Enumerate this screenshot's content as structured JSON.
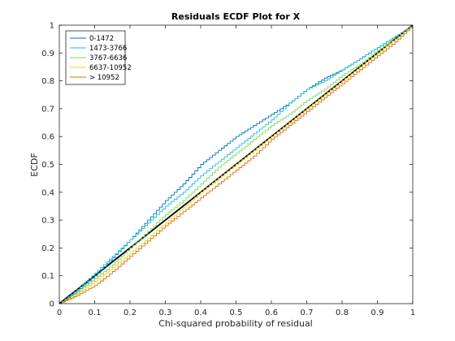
{
  "chart_data": {
    "type": "line",
    "title": "Residuals ECDF Plot for X",
    "xlabel": "Chi-squared probability of residual",
    "ylabel": "ECDF",
    "xlim": [
      0,
      1
    ],
    "ylim": [
      0,
      1
    ],
    "xticks": [
      0,
      0.1,
      0.2,
      0.3,
      0.4,
      0.5,
      0.6,
      0.7,
      0.8,
      0.9,
      1
    ],
    "yticks": [
      0,
      0.1,
      0.2,
      0.3,
      0.4,
      0.5,
      0.6,
      0.7,
      0.8,
      0.9,
      1
    ],
    "xtick_labels": [
      "0",
      "0.1",
      "0.2",
      "0.3",
      "0.4",
      "0.5",
      "0.6",
      "0.7",
      "0.8",
      "0.9",
      "1"
    ],
    "ytick_labels": [
      "0",
      "0.1",
      "0.2",
      "0.3",
      "0.4",
      "0.5",
      "0.6",
      "0.7",
      "0.8",
      "0.9",
      "1"
    ],
    "grid": false,
    "legend_position": "top-left",
    "reference_line": {
      "x": [
        0,
        1
      ],
      "y": [
        0,
        1
      ],
      "color": "#000000"
    },
    "series": [
      {
        "name": "0-1472",
        "color": "#0072BD",
        "x": [
          0,
          0.05,
          0.1,
          0.15,
          0.2,
          0.25,
          0.3,
          0.35,
          0.4,
          0.45,
          0.5,
          0.55,
          0.6,
          0.65,
          0.7,
          0.75,
          0.8,
          0.85,
          0.9,
          0.95,
          1
        ],
        "y": [
          0,
          0.045,
          0.1,
          0.165,
          0.23,
          0.3,
          0.37,
          0.43,
          0.5,
          0.55,
          0.6,
          0.64,
          0.68,
          0.72,
          0.77,
          0.81,
          0.84,
          0.88,
          0.92,
          0.96,
          1
        ]
      },
      {
        "name": "1473-3766",
        "color": "#1ABFD6",
        "x": [
          0,
          0.05,
          0.1,
          0.15,
          0.2,
          0.25,
          0.3,
          0.35,
          0.4,
          0.45,
          0.5,
          0.55,
          0.6,
          0.65,
          0.7,
          0.75,
          0.8,
          0.85,
          0.9,
          0.95,
          1
        ],
        "y": [
          0,
          0.05,
          0.11,
          0.17,
          0.23,
          0.29,
          0.35,
          0.4,
          0.46,
          0.51,
          0.56,
          0.61,
          0.66,
          0.72,
          0.77,
          0.8,
          0.84,
          0.88,
          0.92,
          0.96,
          1
        ]
      },
      {
        "name": "3767-6636",
        "color": "#7ED957",
        "x": [
          0,
          0.05,
          0.1,
          0.15,
          0.2,
          0.25,
          0.3,
          0.35,
          0.4,
          0.45,
          0.5,
          0.55,
          0.6,
          0.65,
          0.7,
          0.75,
          0.8,
          0.85,
          0.9,
          0.95,
          1
        ],
        "y": [
          0,
          0.04,
          0.09,
          0.14,
          0.2,
          0.26,
          0.32,
          0.37,
          0.43,
          0.49,
          0.54,
          0.59,
          0.64,
          0.68,
          0.73,
          0.77,
          0.82,
          0.86,
          0.91,
          0.95,
          1
        ]
      },
      {
        "name": "6637-10952",
        "color": "#EDD51E",
        "x": [
          0,
          0.05,
          0.1,
          0.15,
          0.2,
          0.25,
          0.3,
          0.35,
          0.4,
          0.45,
          0.5,
          0.55,
          0.6,
          0.65,
          0.7,
          0.75,
          0.8,
          0.85,
          0.9,
          0.95,
          1
        ],
        "y": [
          0,
          0.035,
          0.08,
          0.13,
          0.18,
          0.235,
          0.29,
          0.345,
          0.4,
          0.45,
          0.5,
          0.55,
          0.6,
          0.65,
          0.7,
          0.75,
          0.8,
          0.85,
          0.9,
          0.95,
          1
        ]
      },
      {
        "name": "> 10952",
        "color": "#E06A10",
        "x": [
          0,
          0.05,
          0.1,
          0.15,
          0.2,
          0.25,
          0.3,
          0.35,
          0.4,
          0.45,
          0.5,
          0.55,
          0.6,
          0.65,
          0.7,
          0.75,
          0.8,
          0.85,
          0.9,
          0.95,
          1
        ],
        "y": [
          0,
          0.03,
          0.065,
          0.115,
          0.17,
          0.225,
          0.28,
          0.33,
          0.38,
          0.43,
          0.48,
          0.53,
          0.59,
          0.64,
          0.69,
          0.74,
          0.79,
          0.84,
          0.89,
          0.94,
          1
        ]
      }
    ]
  }
}
